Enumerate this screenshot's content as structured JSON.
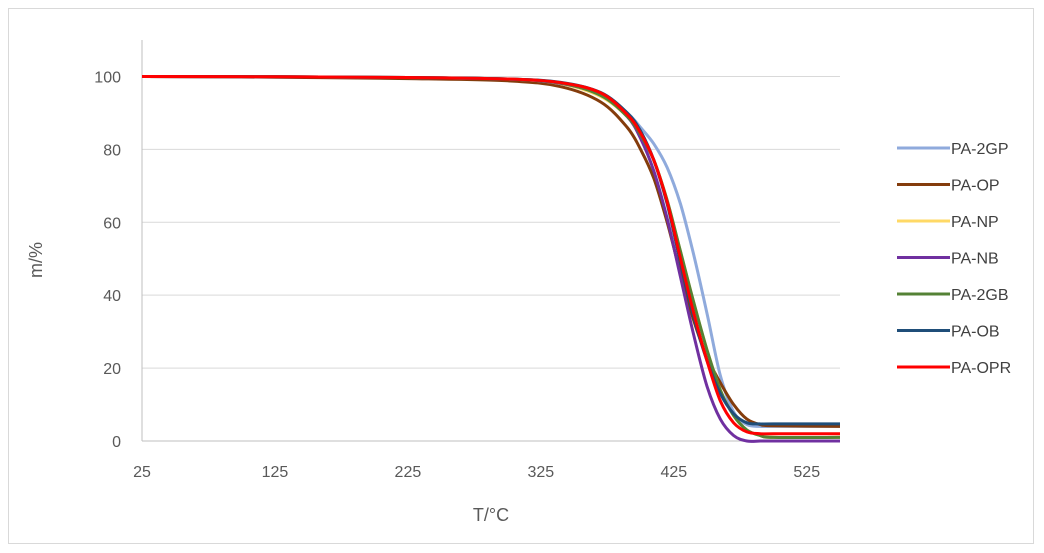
{
  "chart_data": {
    "type": "line",
    "title": "",
    "xlabel": "T/°C",
    "ylabel": "m/%",
    "xlim": [
      25,
      550
    ],
    "ylim": [
      0,
      110
    ],
    "x_ticks": [
      "25",
      "125",
      "225",
      "325",
      "425",
      "525"
    ],
    "y_ticks": [
      "0",
      "20",
      "40",
      "60",
      "80",
      "100"
    ],
    "grid": "horizontal",
    "legend_position": "right",
    "series": [
      {
        "name": "PA-2GP",
        "color": "#8FAADC",
        "x": [
          25,
          125,
          225,
          300,
          340,
          370,
          390,
          400,
          410,
          420,
          430,
          440,
          450,
          460,
          470,
          480,
          490,
          500,
          550
        ],
        "y": [
          100,
          99.9,
          99.7,
          99.3,
          98.3,
          95.5,
          90,
          86,
          81.5,
          75,
          65,
          51,
          35,
          18,
          8,
          4.5,
          4,
          4,
          4
        ]
      },
      {
        "name": "PA-OP",
        "color": "#843C0C",
        "x": [
          25,
          125,
          225,
          300,
          340,
          370,
          390,
          400,
          410,
          420,
          430,
          440,
          450,
          460,
          470,
          480,
          490,
          500,
          550
        ],
        "y": [
          100,
          99.8,
          99.4,
          98.8,
          97.2,
          93,
          86,
          80,
          72,
          60,
          46,
          33,
          23,
          16,
          10,
          6,
          4.5,
          4.2,
          4
        ]
      },
      {
        "name": "PA-NP",
        "color": "#FFD966",
        "x": [
          25,
          125,
          225,
          300,
          340,
          370,
          390,
          400,
          410,
          420,
          430,
          440,
          450,
          460,
          470,
          480,
          490,
          500,
          550
        ],
        "y": [
          100,
          99.9,
          99.7,
          99.3,
          98,
          94.5,
          89,
          84,
          77,
          66,
          52,
          38,
          25,
          14,
          7,
          3,
          1.5,
          1,
          1
        ]
      },
      {
        "name": "PA-NB",
        "color": "#7030A0",
        "x": [
          25,
          125,
          225,
          300,
          340,
          370,
          390,
          400,
          410,
          420,
          430,
          440,
          450,
          460,
          470,
          480,
          490,
          500,
          550
        ],
        "y": [
          100,
          99.9,
          99.7,
          99.3,
          98.1,
          95,
          89,
          83,
          74,
          61,
          45,
          29,
          15,
          6,
          1.5,
          0,
          0,
          0,
          0
        ]
      },
      {
        "name": "PA-2GB",
        "color": "#548235",
        "x": [
          25,
          125,
          225,
          300,
          340,
          370,
          390,
          400,
          410,
          420,
          430,
          440,
          450,
          460,
          470,
          480,
          490,
          500,
          550
        ],
        "y": [
          100,
          99.9,
          99.7,
          99.3,
          98.2,
          94.8,
          89,
          84,
          77,
          66,
          52,
          38,
          25,
          14,
          7,
          3,
          1.5,
          1,
          1
        ]
      },
      {
        "name": "PA-OB",
        "color": "#1F4E79",
        "x": [
          25,
          125,
          225,
          300,
          340,
          370,
          390,
          400,
          410,
          420,
          430,
          440,
          450,
          460,
          470,
          480,
          490,
          500,
          550
        ],
        "y": [
          100,
          99.9,
          99.7,
          99.3,
          98.4,
          95.6,
          90,
          85,
          77,
          65,
          49,
          34,
          22,
          13,
          7.5,
          5,
          4.7,
          4.7,
          4.7
        ]
      },
      {
        "name": "PA-OPR",
        "color": "#FF0000",
        "x": [
          25,
          125,
          225,
          300,
          340,
          370,
          390,
          400,
          410,
          420,
          430,
          440,
          450,
          460,
          470,
          480,
          490,
          500,
          550
        ],
        "y": [
          100,
          99.9,
          99.7,
          99.3,
          98.3,
          95.5,
          89.5,
          84.5,
          77,
          65.5,
          50,
          35,
          22,
          11,
          5,
          2.5,
          2,
          2,
          2
        ]
      }
    ]
  }
}
